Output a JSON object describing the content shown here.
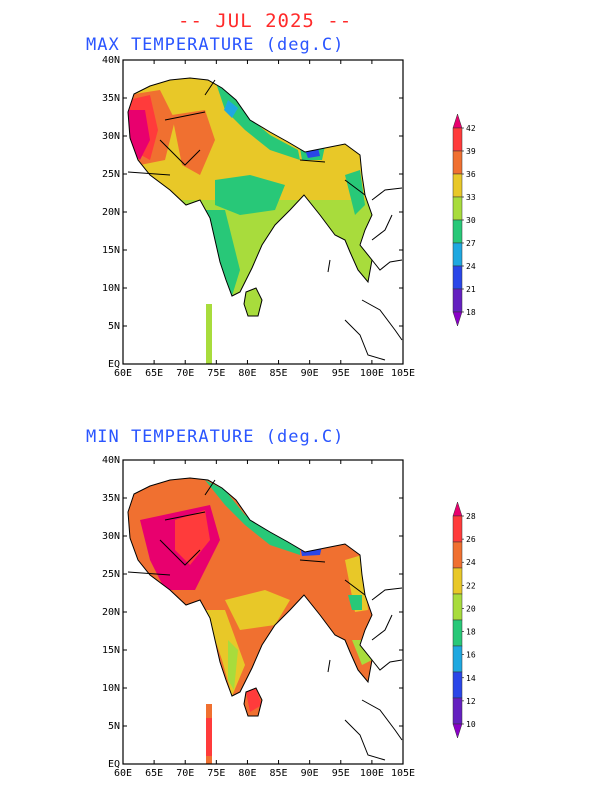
{
  "header": {
    "title": "-- JUL 2025 --"
  },
  "maps": [
    {
      "subtitle": "MAX TEMPERATURE (deg.C)",
      "lat_labels": [
        "40N",
        "35N",
        "30N",
        "25N",
        "20N",
        "15N",
        "10N",
        "5N",
        "EQ"
      ],
      "lon_labels": [
        "60E",
        "65E",
        "70E",
        "75E",
        "80E",
        "85E",
        "90E",
        "95E",
        "100E",
        "105E"
      ],
      "colorbar": {
        "levels": [
          "42",
          "39",
          "36",
          "33",
          "30",
          "27",
          "24",
          "21",
          "18"
        ],
        "colors": [
          "#e8006e",
          "#ff3b3b",
          "#f07030",
          "#e8c828",
          "#a8dc3c",
          "#28c878",
          "#1fa8e0",
          "#2a46e8",
          "#6420c0",
          "#8a00c8"
        ]
      }
    },
    {
      "subtitle": "MIN TEMPERATURE (deg.C)",
      "lat_labels": [
        "40N",
        "35N",
        "30N",
        "25N",
        "20N",
        "15N",
        "10N",
        "5N",
        "EQ"
      ],
      "lon_labels": [
        "60E",
        "65E",
        "70E",
        "75E",
        "80E",
        "85E",
        "90E",
        "95E",
        "100E",
        "105E"
      ],
      "colorbar": {
        "levels": [
          "28",
          "26",
          "24",
          "22",
          "20",
          "18",
          "16",
          "14",
          "12",
          "10"
        ],
        "colors": [
          "#e8006e",
          "#ff3b3b",
          "#f07030",
          "#e8c828",
          "#a8dc3c",
          "#28c878",
          "#1fa8e0",
          "#2a46e8",
          "#6420c0",
          "#8a00c8"
        ]
      }
    }
  ]
}
